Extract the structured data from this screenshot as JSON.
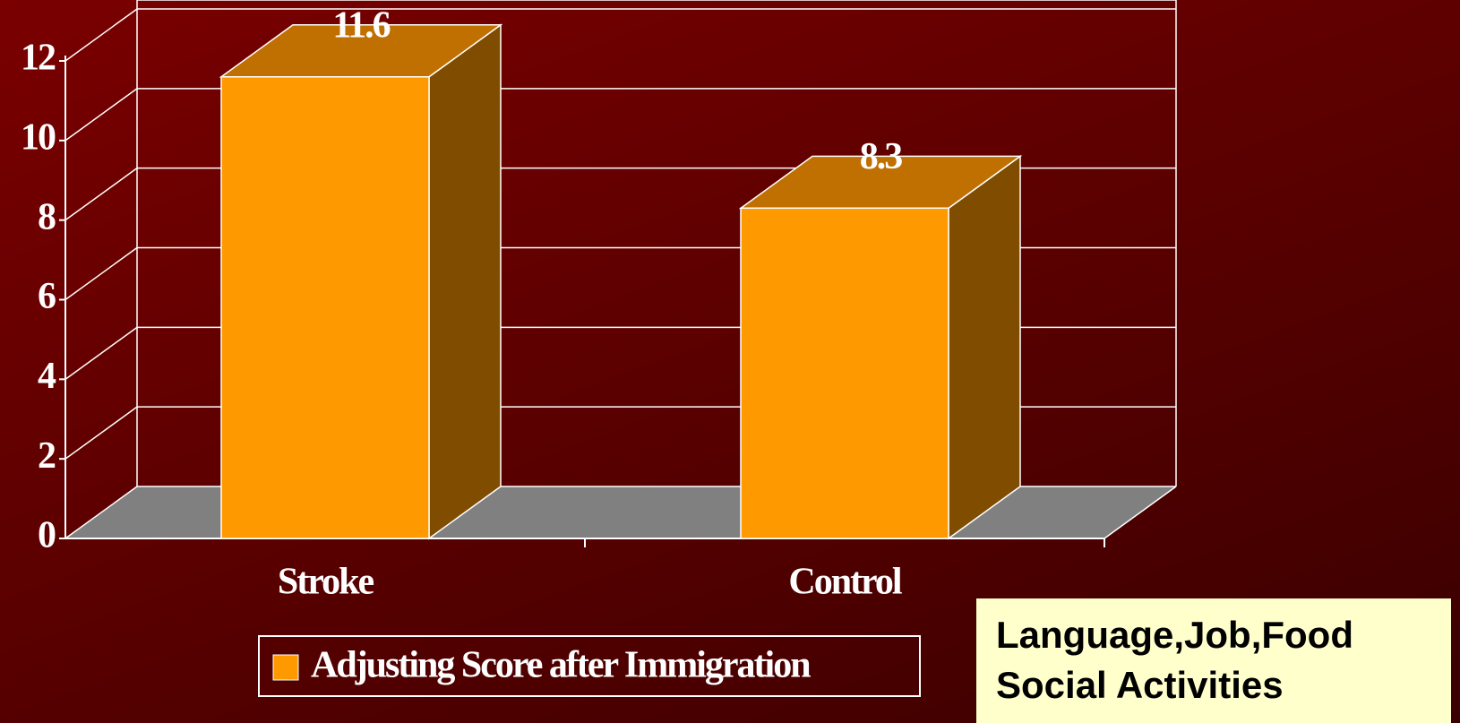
{
  "chart_data": {
    "type": "bar3d",
    "categories": [
      "Stroke",
      "Control"
    ],
    "series": [
      {
        "name": "Adjusting Score after Immigration",
        "color": "#ff9900",
        "values": [
          11.6,
          8.3
        ]
      }
    ],
    "ylim": [
      0,
      12
    ],
    "yticks": [
      0,
      2,
      4,
      6,
      8,
      10,
      12
    ],
    "grid": true,
    "legend": "bottom",
    "annotation": [
      "Language,Job,Food",
      "Social Activities"
    ]
  }
}
